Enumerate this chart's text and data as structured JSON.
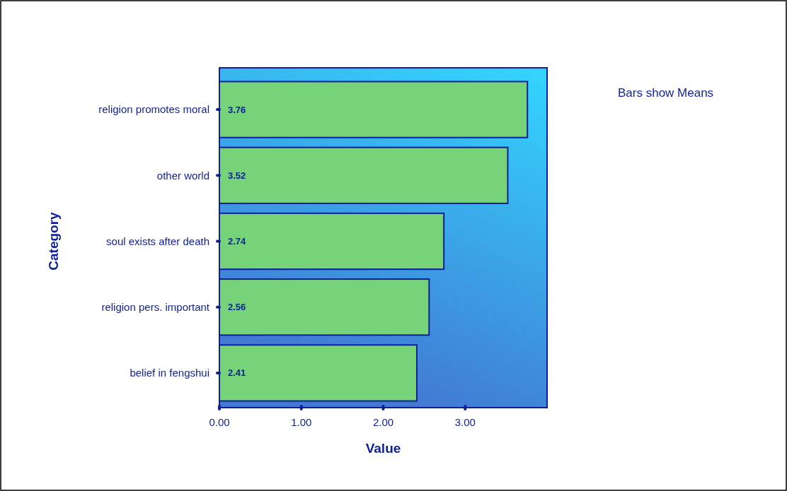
{
  "chart_data": {
    "type": "bar",
    "orientation": "horizontal",
    "xlabel": "Value",
    "ylabel": "Category",
    "categories": [
      "religion promotes moral",
      "other world",
      "soul exists after death",
      "religion pers. important",
      "belief in fengshui"
    ],
    "values": [
      3.76,
      3.52,
      2.74,
      2.56,
      2.41
    ],
    "color": "#77d37a",
    "data_labels": true,
    "xlim": [
      0,
      4
    ],
    "xticks": [
      {
        "value": 0,
        "label": "0.00"
      },
      {
        "value": 1,
        "label": "1.00"
      },
      {
        "value": 2,
        "label": "2.00"
      },
      {
        "value": 3,
        "label": "3.00"
      }
    ],
    "grid": false,
    "annotations": [
      "Bars show Means"
    ]
  }
}
